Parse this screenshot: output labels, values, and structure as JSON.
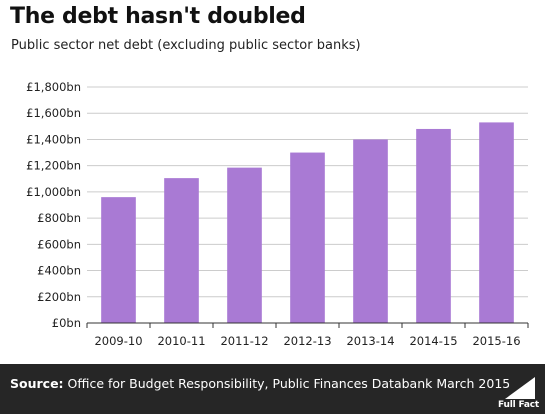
{
  "header": {
    "title": "The debt hasn't doubled",
    "subtitle": "Public sector net debt (excluding public sector banks)"
  },
  "chart_data": {
    "type": "bar",
    "title": "The debt hasn't doubled",
    "subtitle": "Public sector net debt (excluding public sector banks)",
    "xlabel": "",
    "ylabel": "",
    "categories": [
      "2009-10",
      "2010-11",
      "2011-12",
      "2012-13",
      "2013-14",
      "2014-15",
      "2015-16"
    ],
    "values": [
      960,
      1105,
      1185,
      1300,
      1400,
      1480,
      1530
    ],
    "ylim": [
      0,
      1800
    ],
    "yticks": [
      0,
      200,
      400,
      600,
      800,
      1000,
      1200,
      1400,
      1600,
      1800
    ],
    "ytick_labels": [
      "£0bn",
      "£200bn",
      "£400bn",
      "£600bn",
      "£800bn",
      "£1,000bn",
      "£1,200bn",
      "£1,400bn",
      "£1,600bn",
      "£1,800bn"
    ],
    "grid": true,
    "legend": "none",
    "bar_color": "#a97ad4"
  },
  "footer": {
    "source_label": "Source:",
    "source_text": "Office for Budget Responsibility, Public Finances Databank March 2015",
    "logo_text": "Full Fact"
  },
  "colors": {
    "bar": "#a97ad4",
    "footer_bg": "#262626",
    "grid": "#cccccc"
  }
}
